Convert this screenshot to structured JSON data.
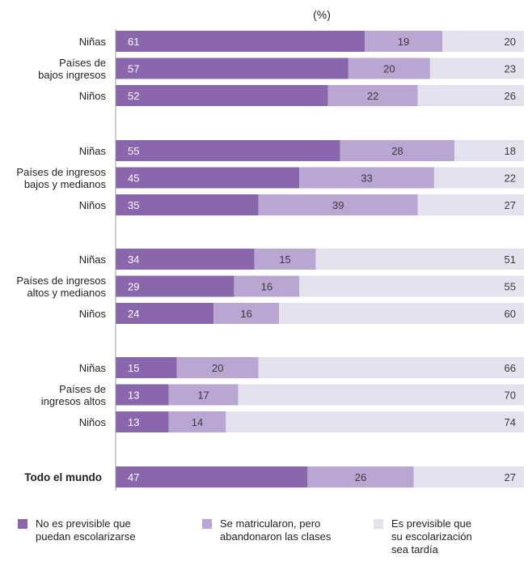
{
  "chart_data": {
    "type": "bar",
    "orientation": "horizontal",
    "stacked": true,
    "unit_label": "(%)",
    "xlim": [
      0,
      100
    ],
    "grid": false,
    "legend_position": "bottom",
    "series": [
      {
        "name": "No es previsible que\npuedan escolarizarse",
        "color": "#8a66ad",
        "text_color": "#ffffff"
      },
      {
        "name": "Se matricularon, pero\nabandonaron las clases",
        "color": "#b9a6d3",
        "text_color": "#3a3a3a"
      },
      {
        "name": "Es previsible que\nsu escolarización\nsea tardía",
        "color": "#e5e2ef",
        "text_color": "#3a3a3a"
      }
    ],
    "groups": [
      {
        "label": "Países de\nbajos ingresos",
        "bold": false,
        "bars": [
          {
            "label": "Niñas",
            "values": [
              61,
              19,
              20
            ]
          },
          {
            "label": "",
            "values": [
              57,
              20,
              23
            ]
          },
          {
            "label": "Niños",
            "values": [
              52,
              22,
              26
            ]
          }
        ]
      },
      {
        "label": "Países de ingresos\nbajos y medianos",
        "bold": false,
        "bars": [
          {
            "label": "Niñas",
            "values": [
              55,
              28,
              18
            ]
          },
          {
            "label": "",
            "values": [
              45,
              33,
              22
            ]
          },
          {
            "label": "Niños",
            "values": [
              35,
              39,
              27
            ]
          }
        ]
      },
      {
        "label": "Países de ingresos\naltos y medianos",
        "bold": false,
        "bars": [
          {
            "label": "Niñas",
            "values": [
              34,
              15,
              51
            ]
          },
          {
            "label": "",
            "values": [
              29,
              16,
              55
            ]
          },
          {
            "label": "Niños",
            "values": [
              24,
              16,
              60
            ]
          }
        ]
      },
      {
        "label": "Países de\ningresos altos",
        "bold": false,
        "bars": [
          {
            "label": "Niñas",
            "values": [
              15,
              20,
              66
            ]
          },
          {
            "label": "",
            "values": [
              13,
              17,
              70
            ]
          },
          {
            "label": "Niños",
            "values": [
              13,
              14,
              74
            ]
          }
        ]
      },
      {
        "label": "Todo el mundo",
        "bold": true,
        "bars": [
          {
            "label": "",
            "values": [
              47,
              26,
              27
            ]
          }
        ]
      }
    ]
  }
}
